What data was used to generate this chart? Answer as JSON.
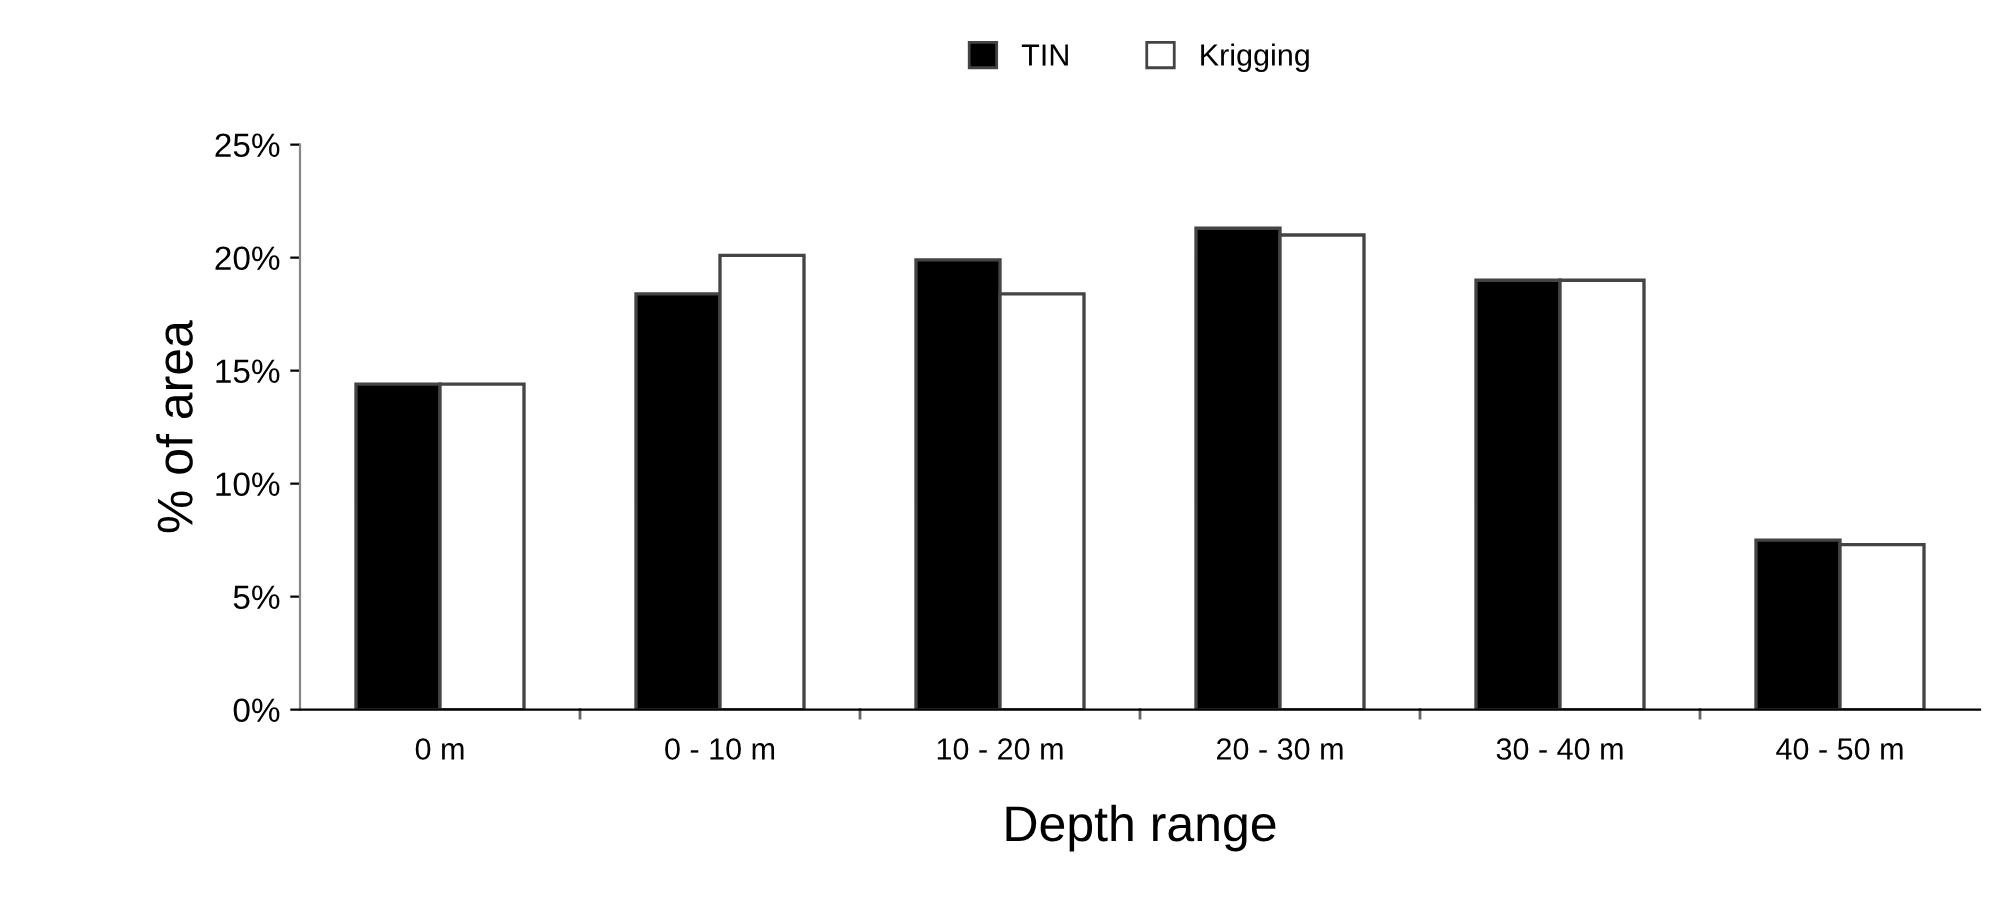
{
  "chart_data": {
    "type": "bar",
    "xlabel": "Depth range",
    "ylabel": "% of area",
    "categories": [
      "0 m",
      "0 - 10 m",
      "10 - 20 m",
      "20 - 30 m",
      "30 - 40 m",
      "40 - 50 m"
    ],
    "series": [
      {
        "name": "TIN",
        "color": "#000000",
        "values": [
          14.4,
          18.4,
          19.9,
          21.3,
          19.0,
          7.5
        ]
      },
      {
        "name": "Krigging",
        "color": "#ffffff",
        "values": [
          14.4,
          20.1,
          18.4,
          21.0,
          19.0,
          7.3
        ]
      }
    ],
    "ylim": [
      0,
      25
    ],
    "yticks": [
      {
        "value": 0,
        "label": "0%"
      },
      {
        "value": 5,
        "label": "5%"
      },
      {
        "value": 10,
        "label": "10%"
      },
      {
        "value": 15,
        "label": "15%"
      },
      {
        "value": 20,
        "label": "20%"
      },
      {
        "value": 25,
        "label": "25%"
      }
    ],
    "grid": false,
    "legend": "top"
  }
}
